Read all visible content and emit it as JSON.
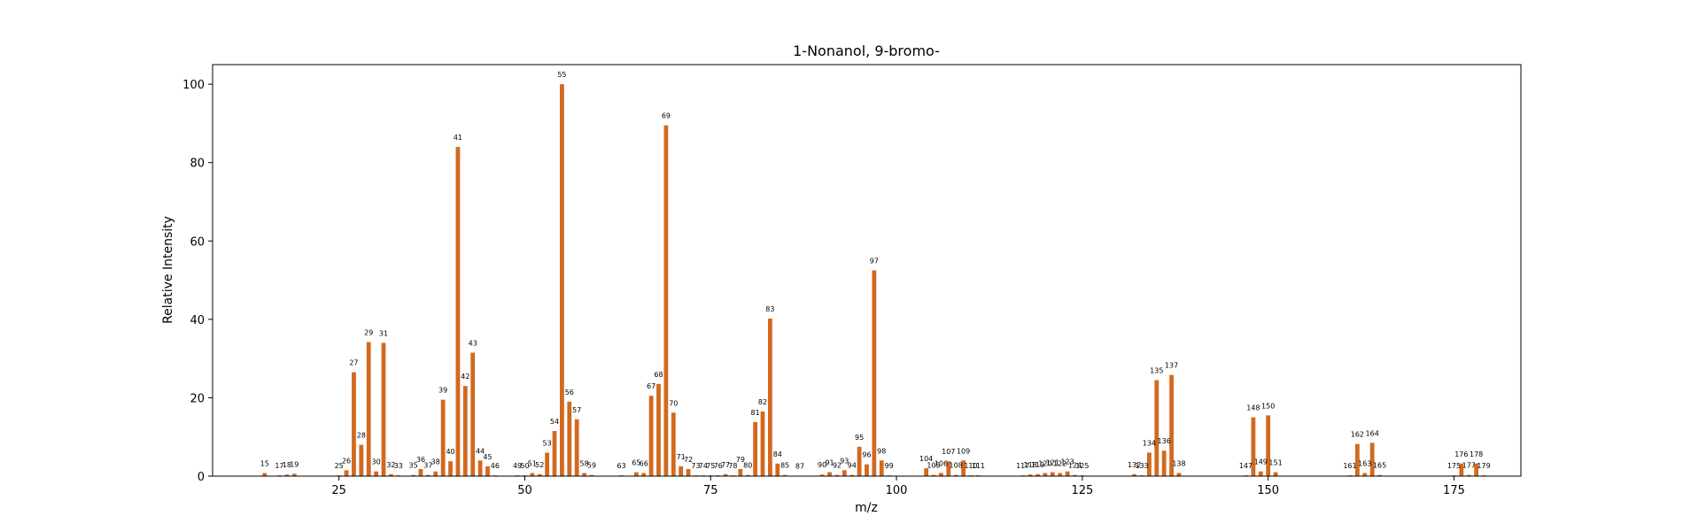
{
  "chart_data": {
    "type": "bar",
    "title": "1-Nonanol, 9-bromo-",
    "xlabel": "m/z",
    "ylabel": "Relative Intensity",
    "xlim": [
      8,
      184
    ],
    "ylim": [
      0,
      105
    ],
    "xticks": [
      25,
      50,
      75,
      100,
      125,
      150,
      175
    ],
    "yticks": [
      0,
      20,
      40,
      60,
      80,
      100
    ],
    "bar_color": "#d2691e",
    "grid": false,
    "x": [
      15,
      17,
      18,
      19,
      25,
      26,
      27,
      28,
      29,
      30,
      31,
      32,
      33,
      35,
      36,
      37,
      38,
      39,
      40,
      41,
      42,
      43,
      44,
      45,
      46,
      49,
      50,
      51,
      52,
      53,
      54,
      55,
      56,
      57,
      58,
      59,
      63,
      65,
      66,
      67,
      68,
      69,
      70,
      71,
      72,
      73,
      74,
      75,
      76,
      77,
      78,
      79,
      80,
      81,
      82,
      83,
      84,
      85,
      87,
      90,
      91,
      92,
      93,
      94,
      95,
      96,
      97,
      98,
      99,
      104,
      105,
      106,
      107,
      108,
      109,
      110,
      111,
      117,
      118,
      119,
      120,
      121,
      122,
      123,
      124,
      125,
      132,
      133,
      134,
      135,
      136,
      137,
      138,
      147,
      148,
      149,
      150,
      151,
      161,
      162,
      163,
      164,
      165,
      175,
      176,
      177,
      178,
      179
    ],
    "values": [
      0.8,
      0.2,
      0.4,
      0.6,
      0.2,
      1.5,
      26.5,
      8.0,
      34.2,
      1.2,
      34.0,
      0.5,
      0.2,
      0.3,
      1.8,
      0.3,
      1.2,
      19.5,
      3.8,
      84.0,
      23.0,
      31.5,
      4.0,
      2.5,
      0.2,
      0.2,
      0.2,
      0.8,
      0.5,
      6.0,
      11.5,
      100.0,
      19.0,
      14.5,
      0.8,
      0.3,
      0.2,
      1.0,
      0.8,
      20.5,
      23.5,
      89.5,
      16.2,
      2.5,
      1.8,
      0.2,
      0.2,
      0.2,
      0.2,
      0.5,
      0.2,
      1.8,
      0.3,
      13.8,
      16.5,
      40.2,
      3.2,
      0.3,
      0.1,
      0.4,
      1.0,
      0.3,
      1.5,
      0.3,
      7.5,
      3.0,
      52.5,
      4.0,
      0.2,
      2.0,
      0.3,
      0.8,
      3.8,
      0.3,
      4.0,
      0.2,
      0.2,
      0.2,
      0.4,
      0.5,
      0.8,
      1.0,
      0.8,
      1.2,
      0.3,
      0.2,
      0.5,
      0.2,
      6.0,
      24.5,
      6.5,
      25.8,
      0.8,
      0.2,
      15.0,
      1.2,
      15.5,
      1.0,
      0.2,
      8.2,
      0.8,
      8.5,
      0.3,
      0.2,
      3.2,
      0.3,
      3.2,
      0.2
    ]
  }
}
